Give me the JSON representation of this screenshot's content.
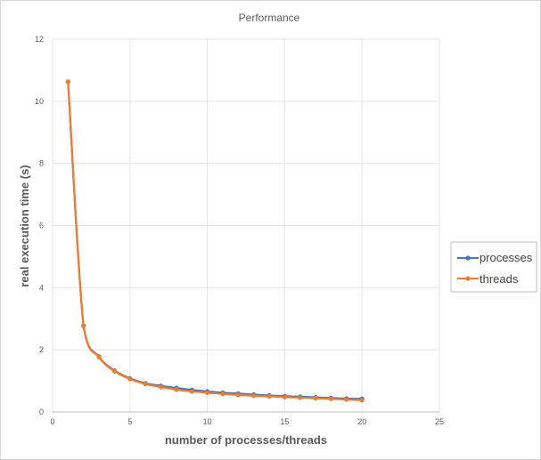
{
  "chart_data": {
    "type": "line",
    "title": "Performance",
    "xlabel": "number of processes/threads",
    "ylabel": "real execution time  (s)",
    "xlim": [
      0,
      25
    ],
    "ylim": [
      0,
      12
    ],
    "xticks": [
      0,
      5,
      10,
      15,
      20,
      25
    ],
    "yticks": [
      0,
      2,
      4,
      6,
      8,
      10,
      12
    ],
    "grid": true,
    "legend": "right",
    "x": [
      1,
      2,
      3,
      4,
      5,
      6,
      7,
      8,
      9,
      10,
      11,
      12,
      13,
      14,
      15,
      16,
      17,
      18,
      19,
      20
    ],
    "series": [
      {
        "name": "processes",
        "color": "#4472c4",
        "values": [
          10.63,
          2.78,
          1.78,
          1.33,
          1.08,
          0.92,
          0.84,
          0.77,
          0.71,
          0.66,
          0.62,
          0.59,
          0.56,
          0.53,
          0.51,
          0.49,
          0.47,
          0.45,
          0.43,
          0.42
        ]
      },
      {
        "name": "threads",
        "color": "#ed7d31",
        "values": [
          10.63,
          2.76,
          1.76,
          1.31,
          1.06,
          0.9,
          0.8,
          0.72,
          0.66,
          0.62,
          0.58,
          0.55,
          0.52,
          0.5,
          0.48,
          0.46,
          0.44,
          0.42,
          0.4,
          0.38
        ]
      }
    ]
  }
}
